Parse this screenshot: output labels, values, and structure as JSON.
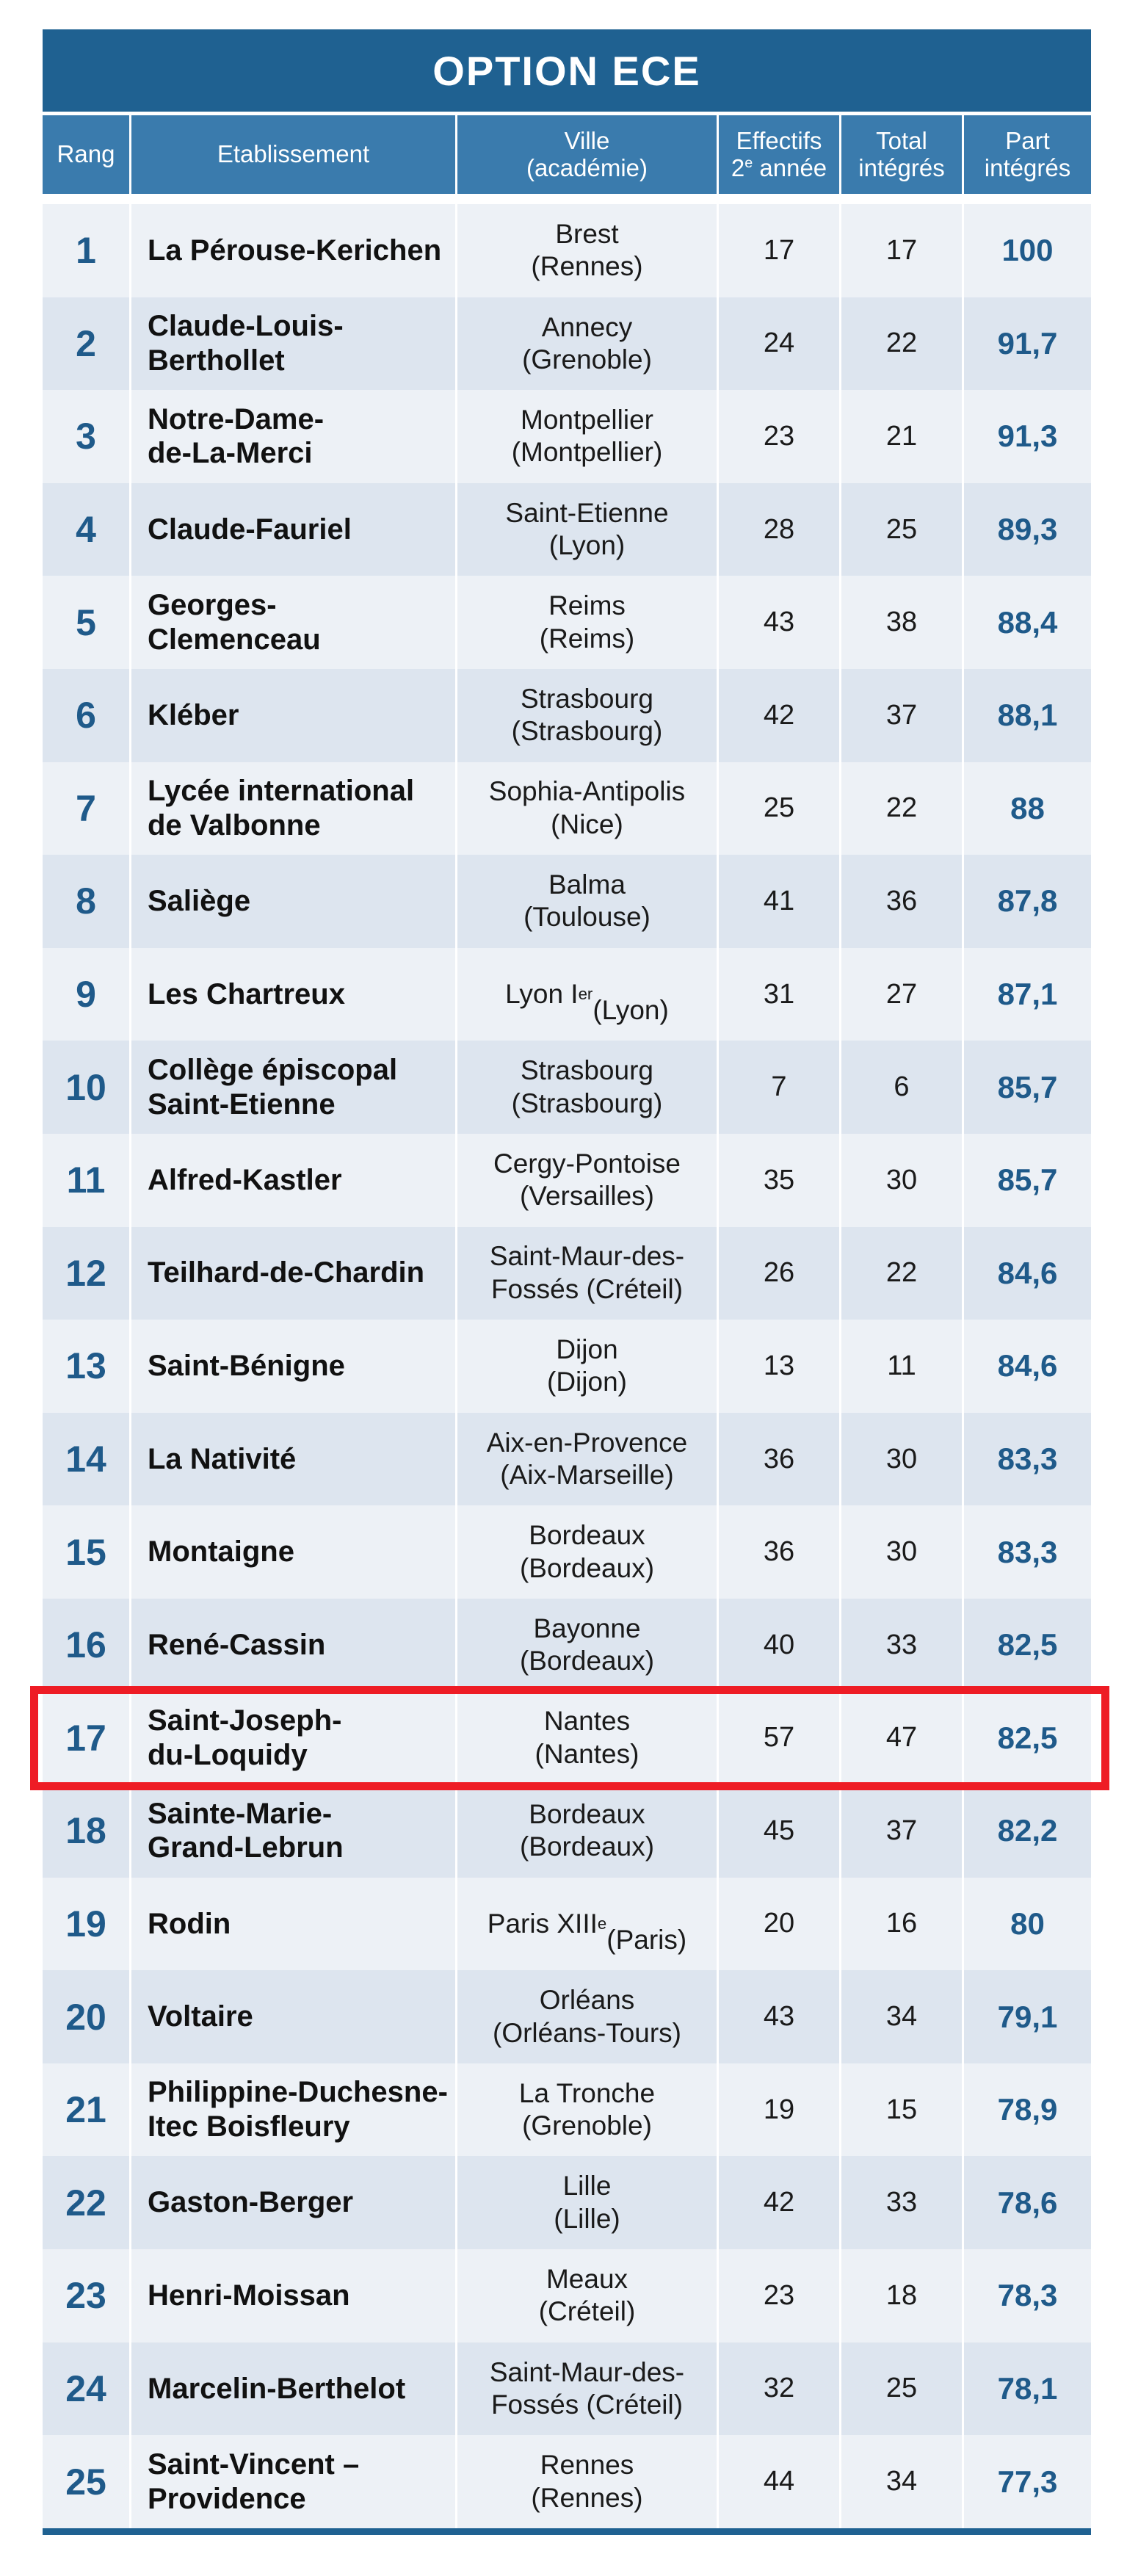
{
  "title": "OPTION ECE",
  "headers": {
    "rang": "Rang",
    "etablissement": "Etablissement",
    "ville": "Ville\n(académie)",
    "effectifs": "Effectifs\n2e année",
    "total": "Total\nintégrés",
    "part": "Part\nintégrés"
  },
  "highlight_color": "#ee1c25",
  "header_color": "#1f6191",
  "highlighted_rang": "17",
  "chart_data": {
    "type": "table",
    "title": "OPTION ECE",
    "columns": [
      "Rang",
      "Etablissement",
      "Ville (académie)",
      "Effectifs 2e année",
      "Total intégrés",
      "Part intégrés"
    ],
    "rows": [
      {
        "rang": "1",
        "etablissement": "La Pérouse-Kerichen",
        "ville": "Brest\n(Rennes)",
        "effectifs": "17",
        "total": "17",
        "part": "100"
      },
      {
        "rang": "2",
        "etablissement": "Claude-Louis-\nBerthollet",
        "ville": "Annecy\n(Grenoble)",
        "effectifs": "24",
        "total": "22",
        "part": "91,7"
      },
      {
        "rang": "3",
        "etablissement": "Notre-Dame-\nde-La-Merci",
        "ville": "Montpellier\n(Montpellier)",
        "effectifs": "23",
        "total": "21",
        "part": "91,3"
      },
      {
        "rang": "4",
        "etablissement": "Claude-Fauriel",
        "ville": "Saint-Etienne\n(Lyon)",
        "effectifs": "28",
        "total": "25",
        "part": "89,3"
      },
      {
        "rang": "5",
        "etablissement": "Georges-\nClemenceau",
        "ville": "Reims\n(Reims)",
        "effectifs": "43",
        "total": "38",
        "part": "88,4"
      },
      {
        "rang": "6",
        "etablissement": "Kléber",
        "ville": "Strasbourg\n(Strasbourg)",
        "effectifs": "42",
        "total": "37",
        "part": "88,1"
      },
      {
        "rang": "7",
        "etablissement": "Lycée international\nde Valbonne",
        "ville": "Sophia-Antipolis\n(Nice)",
        "effectifs": "25",
        "total": "22",
        "part": "88"
      },
      {
        "rang": "8",
        "etablissement": "Saliège",
        "ville": "Balma\n(Toulouse)",
        "effectifs": "41",
        "total": "36",
        "part": "87,8"
      },
      {
        "rang": "9",
        "etablissement": "Les Chartreux",
        "ville": "Lyon Ier\n(Lyon)",
        "effectifs": "31",
        "total": "27",
        "part": "87,1"
      },
      {
        "rang": "10",
        "etablissement": "Collège épiscopal\nSaint-Etienne",
        "ville": "Strasbourg\n(Strasbourg)",
        "effectifs": "7",
        "total": "6",
        "part": "85,7"
      },
      {
        "rang": "11",
        "etablissement": "Alfred-Kastler",
        "ville": "Cergy-Pontoise\n(Versailles)",
        "effectifs": "35",
        "total": "30",
        "part": "85,7"
      },
      {
        "rang": "12",
        "etablissement": "Teilhard-de-Chardin",
        "ville": "Saint-Maur-des-\nFossés (Créteil)",
        "effectifs": "26",
        "total": "22",
        "part": "84,6"
      },
      {
        "rang": "13",
        "etablissement": "Saint-Bénigne",
        "ville": "Dijon\n(Dijon)",
        "effectifs": "13",
        "total": "11",
        "part": "84,6"
      },
      {
        "rang": "14",
        "etablissement": "La Nativité",
        "ville": "Aix-en-Provence\n(Aix-Marseille)",
        "effectifs": "36",
        "total": "30",
        "part": "83,3"
      },
      {
        "rang": "15",
        "etablissement": "Montaigne",
        "ville": "Bordeaux\n(Bordeaux)",
        "effectifs": "36",
        "total": "30",
        "part": "83,3"
      },
      {
        "rang": "16",
        "etablissement": "René-Cassin",
        "ville": "Bayonne\n(Bordeaux)",
        "effectifs": "40",
        "total": "33",
        "part": "82,5"
      },
      {
        "rang": "17",
        "etablissement": "Saint-Joseph-\ndu-Loquidy",
        "ville": "Nantes\n(Nantes)",
        "effectifs": "57",
        "total": "47",
        "part": "82,5"
      },
      {
        "rang": "18",
        "etablissement": "Sainte-Marie-\nGrand-Lebrun",
        "ville": "Bordeaux\n(Bordeaux)",
        "effectifs": "45",
        "total": "37",
        "part": "82,2"
      },
      {
        "rang": "19",
        "etablissement": "Rodin",
        "ville": "Paris XIIIe\n(Paris)",
        "effectifs": "20",
        "total": "16",
        "part": "80"
      },
      {
        "rang": "20",
        "etablissement": "Voltaire",
        "ville": "Orléans\n(Orléans-Tours)",
        "effectifs": "43",
        "total": "34",
        "part": "79,1"
      },
      {
        "rang": "21",
        "etablissement": "Philippine-Duchesne-\nItec Boisfleury",
        "ville": "La Tronche\n(Grenoble)",
        "effectifs": "19",
        "total": "15",
        "part": "78,9"
      },
      {
        "rang": "22",
        "etablissement": "Gaston-Berger",
        "ville": "Lille\n(Lille)",
        "effectifs": "42",
        "total": "33",
        "part": "78,6"
      },
      {
        "rang": "23",
        "etablissement": "Henri-Moissan",
        "ville": "Meaux\n(Créteil)",
        "effectifs": "23",
        "total": "18",
        "part": "78,3"
      },
      {
        "rang": "24",
        "etablissement": "Marcelin-Berthelot",
        "ville": "Saint-Maur-des-\nFossés (Créteil)",
        "effectifs": "32",
        "total": "25",
        "part": "78,1"
      },
      {
        "rang": "25",
        "etablissement": "Saint-Vincent –\nProvidence",
        "ville": "Rennes\n(Rennes)",
        "effectifs": "44",
        "total": "34",
        "part": "77,3"
      }
    ]
  }
}
